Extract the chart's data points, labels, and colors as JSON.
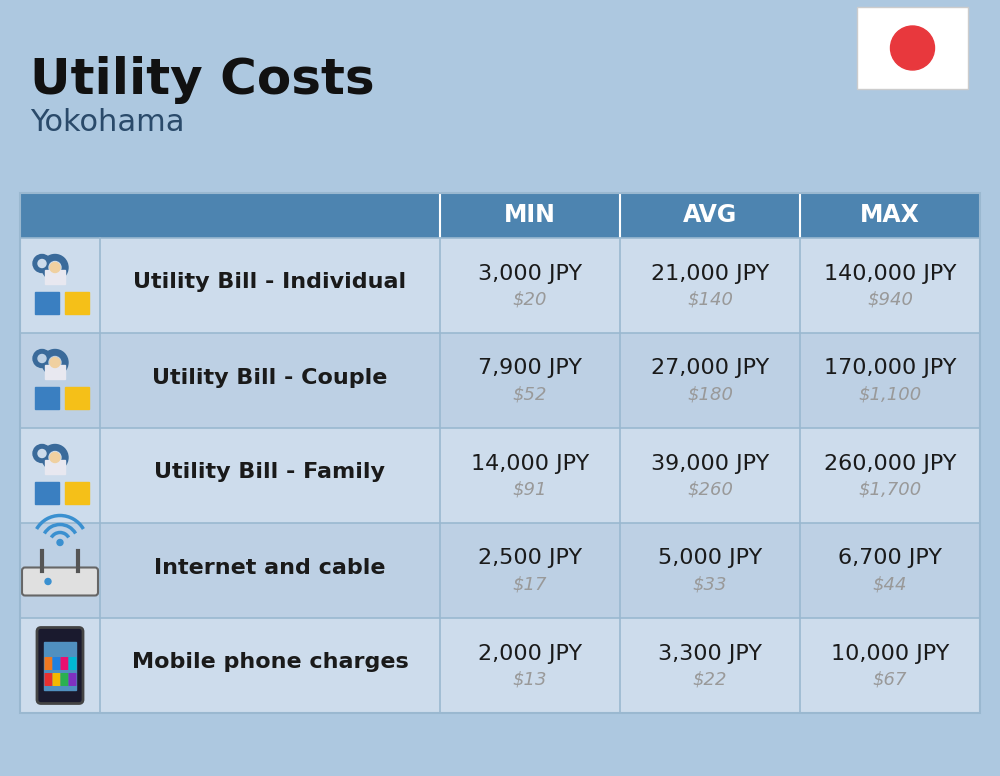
{
  "title": "Utility Costs",
  "subtitle": "Yokohama",
  "background_color": "#adc8e0",
  "header_bg_color": "#4d84b0",
  "header_text_color": "#ffffff",
  "row_bg_color_1": "#cddcec",
  "row_bg_color_2": "#bdd0e4",
  "divider_color": "#9ab8d0",
  "columns": [
    "MIN",
    "AVG",
    "MAX"
  ],
  "rows": [
    {
      "label": "Utility Bill - Individual",
      "icon": "utility",
      "min_jpy": "3,000 JPY",
      "min_usd": "$20",
      "avg_jpy": "21,000 JPY",
      "avg_usd": "$140",
      "max_jpy": "140,000 JPY",
      "max_usd": "$940"
    },
    {
      "label": "Utility Bill - Couple",
      "icon": "utility",
      "min_jpy": "7,900 JPY",
      "min_usd": "$52",
      "avg_jpy": "27,000 JPY",
      "avg_usd": "$180",
      "max_jpy": "170,000 JPY",
      "max_usd": "$1,100"
    },
    {
      "label": "Utility Bill - Family",
      "icon": "utility",
      "min_jpy": "14,000 JPY",
      "min_usd": "$91",
      "avg_jpy": "39,000 JPY",
      "avg_usd": "$260",
      "max_jpy": "260,000 JPY",
      "max_usd": "$1,700"
    },
    {
      "label": "Internet and cable",
      "icon": "internet",
      "min_jpy": "2,500 JPY",
      "min_usd": "$17",
      "avg_jpy": "5,000 JPY",
      "avg_usd": "$33",
      "max_jpy": "6,700 JPY",
      "max_usd": "$44"
    },
    {
      "label": "Mobile phone charges",
      "icon": "mobile",
      "min_jpy": "2,000 JPY",
      "min_usd": "$13",
      "avg_jpy": "3,300 JPY",
      "avg_usd": "$22",
      "max_jpy": "10,000 JPY",
      "max_usd": "$67"
    }
  ],
  "title_fontsize": 36,
  "subtitle_fontsize": 22,
  "header_fontsize": 17,
  "label_fontsize": 16,
  "value_fontsize": 16,
  "usd_fontsize": 13
}
